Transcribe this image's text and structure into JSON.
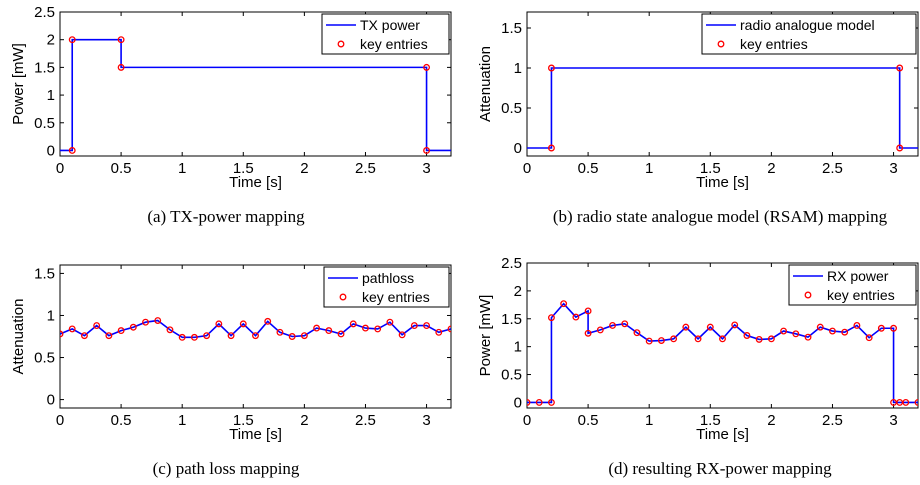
{
  "colors": {
    "line": "#0000ff",
    "marker": "#ff0000",
    "axis": "#000000"
  },
  "charts": [
    {
      "id": "a",
      "caption": "(a)  TX-power mapping",
      "ylabel": "Power [mW]",
      "legend_line": "TX power",
      "legend_marker": "key entries"
    },
    {
      "id": "b",
      "caption": "(b)  radio state analogue model (RSAM) mapping",
      "ylabel": "Attenuation",
      "legend_line": "radio analogue model",
      "legend_marker": "key entries"
    },
    {
      "id": "c",
      "caption": "(c)  path loss mapping",
      "ylabel": "Attenuation",
      "legend_line": "pathloss",
      "legend_marker": "key entries"
    },
    {
      "id": "d",
      "caption": "(d)  resulting RX-power mapping",
      "ylabel": "Power [mW]",
      "legend_line": "RX power",
      "legend_marker": "key entries"
    }
  ],
  "chart_data": [
    {
      "type": "line",
      "xlabel": "Time [s]",
      "ylabel": "Power [mW]",
      "xlim": [
        0,
        3.2
      ],
      "ylim": [
        -0.1,
        2.5
      ],
      "xticks": [
        "0",
        "0.5",
        "1",
        "1.5",
        "2",
        "2.5",
        "3"
      ],
      "yticks": [
        "0",
        "0.5",
        "1",
        "1.5",
        "2",
        "2.5"
      ],
      "legend": "top-right",
      "series": [
        {
          "name": "TX power",
          "x": [
            0,
            0.1,
            0.1,
            0.5,
            0.5,
            3.0,
            3.0,
            3.2
          ],
          "y": [
            0,
            0,
            2,
            2,
            1.5,
            1.5,
            0,
            0
          ]
        },
        {
          "name": "key entries",
          "x": [
            0.1,
            0.1,
            0.5,
            0.5,
            3.0,
            3.0
          ],
          "y": [
            0,
            2,
            2,
            1.5,
            1.5,
            0
          ]
        }
      ]
    },
    {
      "type": "line",
      "xlabel": "Time [s]",
      "ylabel": "Attenuation",
      "xlim": [
        0,
        3.2
      ],
      "ylim": [
        -0.1,
        1.7
      ],
      "xticks": [
        "0",
        "0.5",
        "1",
        "1.5",
        "2",
        "2.5",
        "3"
      ],
      "yticks": [
        "0",
        "0.5",
        "1",
        "1.5"
      ],
      "legend": "top-right",
      "series": [
        {
          "name": "radio analogue model",
          "x": [
            0,
            0.2,
            0.2,
            3.05,
            3.05,
            3.2
          ],
          "y": [
            0,
            0,
            1,
            1,
            0,
            0
          ]
        },
        {
          "name": "key entries",
          "x": [
            0.2,
            0.2,
            3.05,
            3.05
          ],
          "y": [
            0,
            1,
            1,
            0
          ]
        }
      ]
    },
    {
      "type": "line",
      "xlabel": "Time [s]",
      "ylabel": "Attenuation",
      "xlim": [
        0,
        3.2
      ],
      "ylim": [
        -0.1,
        1.6
      ],
      "xticks": [
        "0",
        "0.5",
        "1",
        "1.5",
        "2",
        "2.5",
        "3"
      ],
      "yticks": [
        "0",
        "0.5",
        "1",
        "1.5"
      ],
      "legend": "top-right",
      "series": [
        {
          "name": "pathloss",
          "x": [
            0,
            0.1,
            0.2,
            0.3,
            0.4,
            0.5,
            0.6,
            0.7,
            0.8,
            0.9,
            1.0,
            1.1,
            1.2,
            1.3,
            1.4,
            1.5,
            1.6,
            1.7,
            1.8,
            1.9,
            2.0,
            2.1,
            2.2,
            2.3,
            2.4,
            2.5,
            2.6,
            2.7,
            2.8,
            2.9,
            3.0,
            3.1,
            3.2
          ],
          "y": [
            0.78,
            0.84,
            0.76,
            0.88,
            0.76,
            0.82,
            0.86,
            0.92,
            0.94,
            0.83,
            0.74,
            0.74,
            0.76,
            0.9,
            0.76,
            0.9,
            0.76,
            0.93,
            0.8,
            0.75,
            0.76,
            0.85,
            0.82,
            0.78,
            0.9,
            0.85,
            0.84,
            0.92,
            0.77,
            0.88,
            0.88,
            0.8,
            0.84
          ]
        },
        {
          "name": "key entries",
          "x": [
            0,
            0.1,
            0.2,
            0.3,
            0.4,
            0.5,
            0.6,
            0.7,
            0.8,
            0.9,
            1.0,
            1.1,
            1.2,
            1.3,
            1.4,
            1.5,
            1.6,
            1.7,
            1.8,
            1.9,
            2.0,
            2.1,
            2.2,
            2.3,
            2.4,
            2.5,
            2.6,
            2.7,
            2.8,
            2.9,
            3.0,
            3.1,
            3.2
          ],
          "y": [
            0.78,
            0.84,
            0.76,
            0.88,
            0.76,
            0.82,
            0.86,
            0.92,
            0.94,
            0.83,
            0.74,
            0.74,
            0.76,
            0.9,
            0.76,
            0.9,
            0.76,
            0.93,
            0.8,
            0.75,
            0.76,
            0.85,
            0.82,
            0.78,
            0.9,
            0.85,
            0.84,
            0.92,
            0.77,
            0.88,
            0.88,
            0.8,
            0.84
          ]
        }
      ]
    },
    {
      "type": "line",
      "xlabel": "Time [s]",
      "ylabel": "Power [mW]",
      "xlim": [
        0,
        3.2
      ],
      "ylim": [
        -0.1,
        2.5
      ],
      "xticks": [
        "0",
        "0.5",
        "1",
        "1.5",
        "2",
        "2.5",
        "3"
      ],
      "yticks": [
        "0",
        "0.5",
        "1",
        "1.5",
        "2",
        "2.5"
      ],
      "legend": "top-right",
      "series": [
        {
          "name": "RX power",
          "x": [
            0,
            0.1,
            0.2,
            0.2,
            0.3,
            0.4,
            0.5,
            0.5,
            0.6,
            0.7,
            0.8,
            0.9,
            1.0,
            1.1,
            1.2,
            1.3,
            1.4,
            1.5,
            1.6,
            1.7,
            1.8,
            1.9,
            2.0,
            2.1,
            2.2,
            2.3,
            2.4,
            2.5,
            2.6,
            2.7,
            2.8,
            2.9,
            3.0,
            3.0,
            3.05,
            3.1,
            3.2
          ],
          "y": [
            0,
            0,
            0,
            1.52,
            1.77,
            1.53,
            1.64,
            1.24,
            1.3,
            1.38,
            1.41,
            1.25,
            1.1,
            1.11,
            1.14,
            1.35,
            1.14,
            1.35,
            1.14,
            1.39,
            1.2,
            1.13,
            1.14,
            1.28,
            1.23,
            1.17,
            1.35,
            1.28,
            1.26,
            1.38,
            1.16,
            1.33,
            1.33,
            0,
            0,
            0,
            0
          ]
        },
        {
          "name": "key entries",
          "x": [
            0,
            0.1,
            0.2,
            0.2,
            0.3,
            0.4,
            0.5,
            0.5,
            0.6,
            0.7,
            0.8,
            0.9,
            1.0,
            1.1,
            1.2,
            1.3,
            1.4,
            1.5,
            1.6,
            1.7,
            1.8,
            1.9,
            2.0,
            2.1,
            2.2,
            2.3,
            2.4,
            2.5,
            2.6,
            2.7,
            2.8,
            2.9,
            3.0,
            3.0,
            3.05,
            3.1,
            3.2
          ],
          "y": [
            0,
            0,
            0,
            1.52,
            1.77,
            1.53,
            1.64,
            1.24,
            1.3,
            1.38,
            1.41,
            1.25,
            1.1,
            1.11,
            1.14,
            1.35,
            1.14,
            1.35,
            1.14,
            1.39,
            1.2,
            1.13,
            1.14,
            1.28,
            1.23,
            1.17,
            1.35,
            1.28,
            1.26,
            1.38,
            1.16,
            1.33,
            1.33,
            0,
            0,
            0,
            0
          ]
        }
      ]
    }
  ]
}
